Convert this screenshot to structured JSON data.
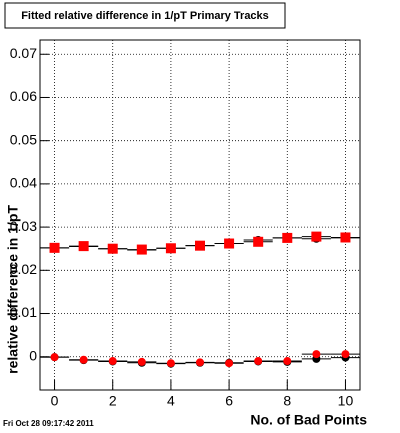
{
  "chart_data": {
    "type": "scatter",
    "title": "Fitted relative difference in 1/pT Primary Tracks",
    "x_label": "No. of Bad Points",
    "y_label": "relative difference in 1/pT",
    "timestamp": "Fri Oct 28 09:17:42 2011",
    "x": [
      0,
      1,
      2,
      3,
      4,
      5,
      6,
      7,
      8,
      9,
      10
    ],
    "x_error": 0.5,
    "series": [
      {
        "color": "#000000",
        "marker": "circle",
        "values": [
          0.0252,
          0.0255,
          0.025,
          0.0247,
          0.0251,
          0.0257,
          0.0262,
          0.027,
          0.0275,
          0.0273,
          0.0275
        ]
      },
      {
        "color": "#ff0000",
        "marker": "square",
        "values": [
          0.0252,
          0.0256,
          0.025,
          0.0248,
          0.0251,
          0.0257,
          0.0262,
          0.0266,
          0.0275,
          0.0278,
          0.0276
        ]
      },
      {
        "color": "#000000",
        "marker": "circle",
        "values": [
          -0.0001,
          -0.0008,
          -0.0011,
          -0.0014,
          -0.0016,
          -0.0014,
          -0.0014,
          -0.0011,
          -0.0012,
          -0.0005,
          -0.0002
        ]
      },
      {
        "color": "#ff0000",
        "marker": "circle",
        "values": [
          -0.0001,
          -0.0007,
          -0.001,
          -0.0012,
          -0.0015,
          -0.0013,
          -0.0015,
          -0.001,
          -0.001,
          0.0006,
          0.0006
        ]
      }
    ],
    "xlim": [
      -0.5,
      10.5
    ],
    "ylim": [
      -0.0077,
      0.0733
    ],
    "xticks": [
      0,
      2,
      4,
      6,
      8,
      10
    ],
    "yticks": [
      0,
      0.01,
      0.02,
      0.03,
      0.04,
      0.05,
      0.06,
      0.07
    ],
    "grid": true
  }
}
